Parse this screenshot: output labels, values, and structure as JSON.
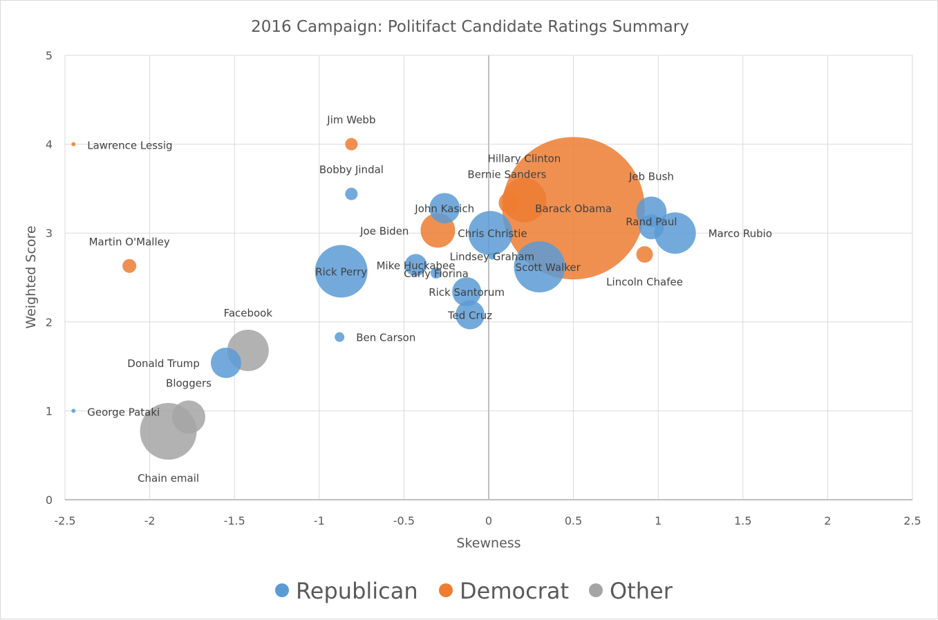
{
  "chart_data": {
    "type": "scatter",
    "subtype": "bubble",
    "title": "2016 Campaign: Politifact Candidate Ratings Summary",
    "xlabel": "Skewness",
    "ylabel": "Weighted Score",
    "xlim": [
      -2.5,
      2.5
    ],
    "ylim": [
      0,
      5
    ],
    "xticks": [
      -2.5,
      -2,
      -1.5,
      -1,
      -0.5,
      0,
      0.5,
      1,
      1.5,
      2,
      2.5
    ],
    "yticks": [
      0,
      1,
      2,
      3,
      4,
      5
    ],
    "grid": true,
    "legend": "bottom",
    "colors": {
      "Republican": "#5b9bd5",
      "Democrat": "#ed7d31",
      "Other": "#a5a5a5"
    },
    "series": [
      {
        "name": "Republican",
        "points": [
          {
            "label": "Bobby Jindal",
            "x": -0.81,
            "y": 3.44,
            "size": 9
          },
          {
            "label": "John Kasich",
            "x": -0.26,
            "y": 3.28,
            "size": 22
          },
          {
            "label": "Chris Christie",
            "x": 0.01,
            "y": 3.0,
            "size": 32
          },
          {
            "label": "Jeb Bush",
            "x": 0.96,
            "y": 3.24,
            "size": 22
          },
          {
            "label": "Rand Paul",
            "x": 0.96,
            "y": 3.07,
            "size": 18
          },
          {
            "label": "Marco Rubio",
            "x": 1.1,
            "y": 3.0,
            "size": 30
          },
          {
            "label": "Rick Perry",
            "x": -0.87,
            "y": 2.57,
            "size": 38
          },
          {
            "label": "Mike Huckabee",
            "x": -0.43,
            "y": 2.64,
            "size": 16
          },
          {
            "label": "Carly Fiorina",
            "x": -0.31,
            "y": 2.55,
            "size": 8
          },
          {
            "label": "Lindsey Graham",
            "x": 0.02,
            "y": 2.74,
            "size": 5
          },
          {
            "label": "Scott Walker",
            "x": 0.3,
            "y": 2.62,
            "size": 37
          },
          {
            "label": "Rick Santorum",
            "x": -0.13,
            "y": 2.34,
            "size": 21
          },
          {
            "label": "Ted Cruz",
            "x": -0.11,
            "y": 2.08,
            "size": 21
          },
          {
            "label": "Ben Carson",
            "x": -0.88,
            "y": 1.83,
            "size": 7
          },
          {
            "label": "Donald Trump",
            "x": -1.55,
            "y": 1.54,
            "size": 22
          },
          {
            "label": "George Pataki",
            "x": -2.45,
            "y": 1.0,
            "size": 3
          }
        ]
      },
      {
        "name": "Democrat",
        "points": [
          {
            "label": "Lawrence Lessig",
            "x": -2.45,
            "y": 4.0,
            "size": 3
          },
          {
            "label": "Jim Webb",
            "x": -0.81,
            "y": 4.0,
            "size": 9
          },
          {
            "label": "Hillary Clinton",
            "x": 0.21,
            "y": 3.37,
            "size": 32
          },
          {
            "label": "Bernie Sanders",
            "x": 0.12,
            "y": 3.34,
            "size": 15
          },
          {
            "label": "Barack Obama",
            "x": 0.5,
            "y": 3.28,
            "size": 103
          },
          {
            "label": "Joe Biden",
            "x": -0.3,
            "y": 3.03,
            "size": 25
          },
          {
            "label": "Martin O'Malley",
            "x": -2.12,
            "y": 2.63,
            "size": 10
          },
          {
            "label": "Lincoln Chafee",
            "x": 0.92,
            "y": 2.76,
            "size": 12
          }
        ]
      },
      {
        "name": "Other",
        "points": [
          {
            "label": "Facebook",
            "x": -1.42,
            "y": 1.68,
            "size": 30
          },
          {
            "label": "Bloggers",
            "x": -1.77,
            "y": 0.93,
            "size": 24
          },
          {
            "label": "Chain email",
            "x": -1.89,
            "y": 0.77,
            "size": 41
          }
        ]
      }
    ]
  }
}
